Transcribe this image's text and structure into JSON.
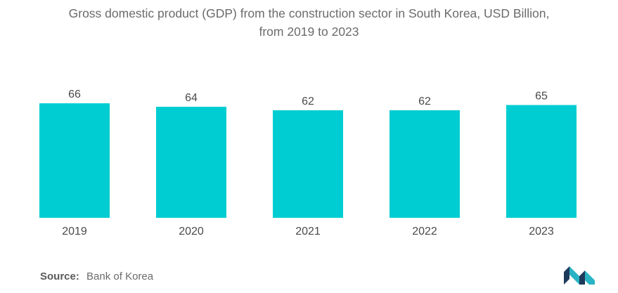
{
  "title_line1": "Gross domestic product (GDP) from the construction sector in South Korea, USD Billion,",
  "title_line2": "from 2019 to 2023",
  "source": {
    "label": "Source:",
    "value": "Bank of Korea"
  },
  "colors": {
    "bar": "#00CDD2",
    "text": "#4a4a4a",
    "logo_dark": "#1d3a5c",
    "logo_teal": "#2ab3c4"
  },
  "logo_icon": "mordor-intelligence-logo",
  "chart_data": {
    "type": "bar",
    "title": "Gross domestic product (GDP) from the construction sector in South Korea, USD Billion, from 2019 to 2023",
    "categories": [
      "2019",
      "2020",
      "2021",
      "2022",
      "2023"
    ],
    "values": [
      66,
      64,
      62,
      62,
      65
    ],
    "xlabel": "",
    "ylabel": "",
    "ylim": [
      0,
      66
    ],
    "grid": false,
    "legend": "none"
  }
}
